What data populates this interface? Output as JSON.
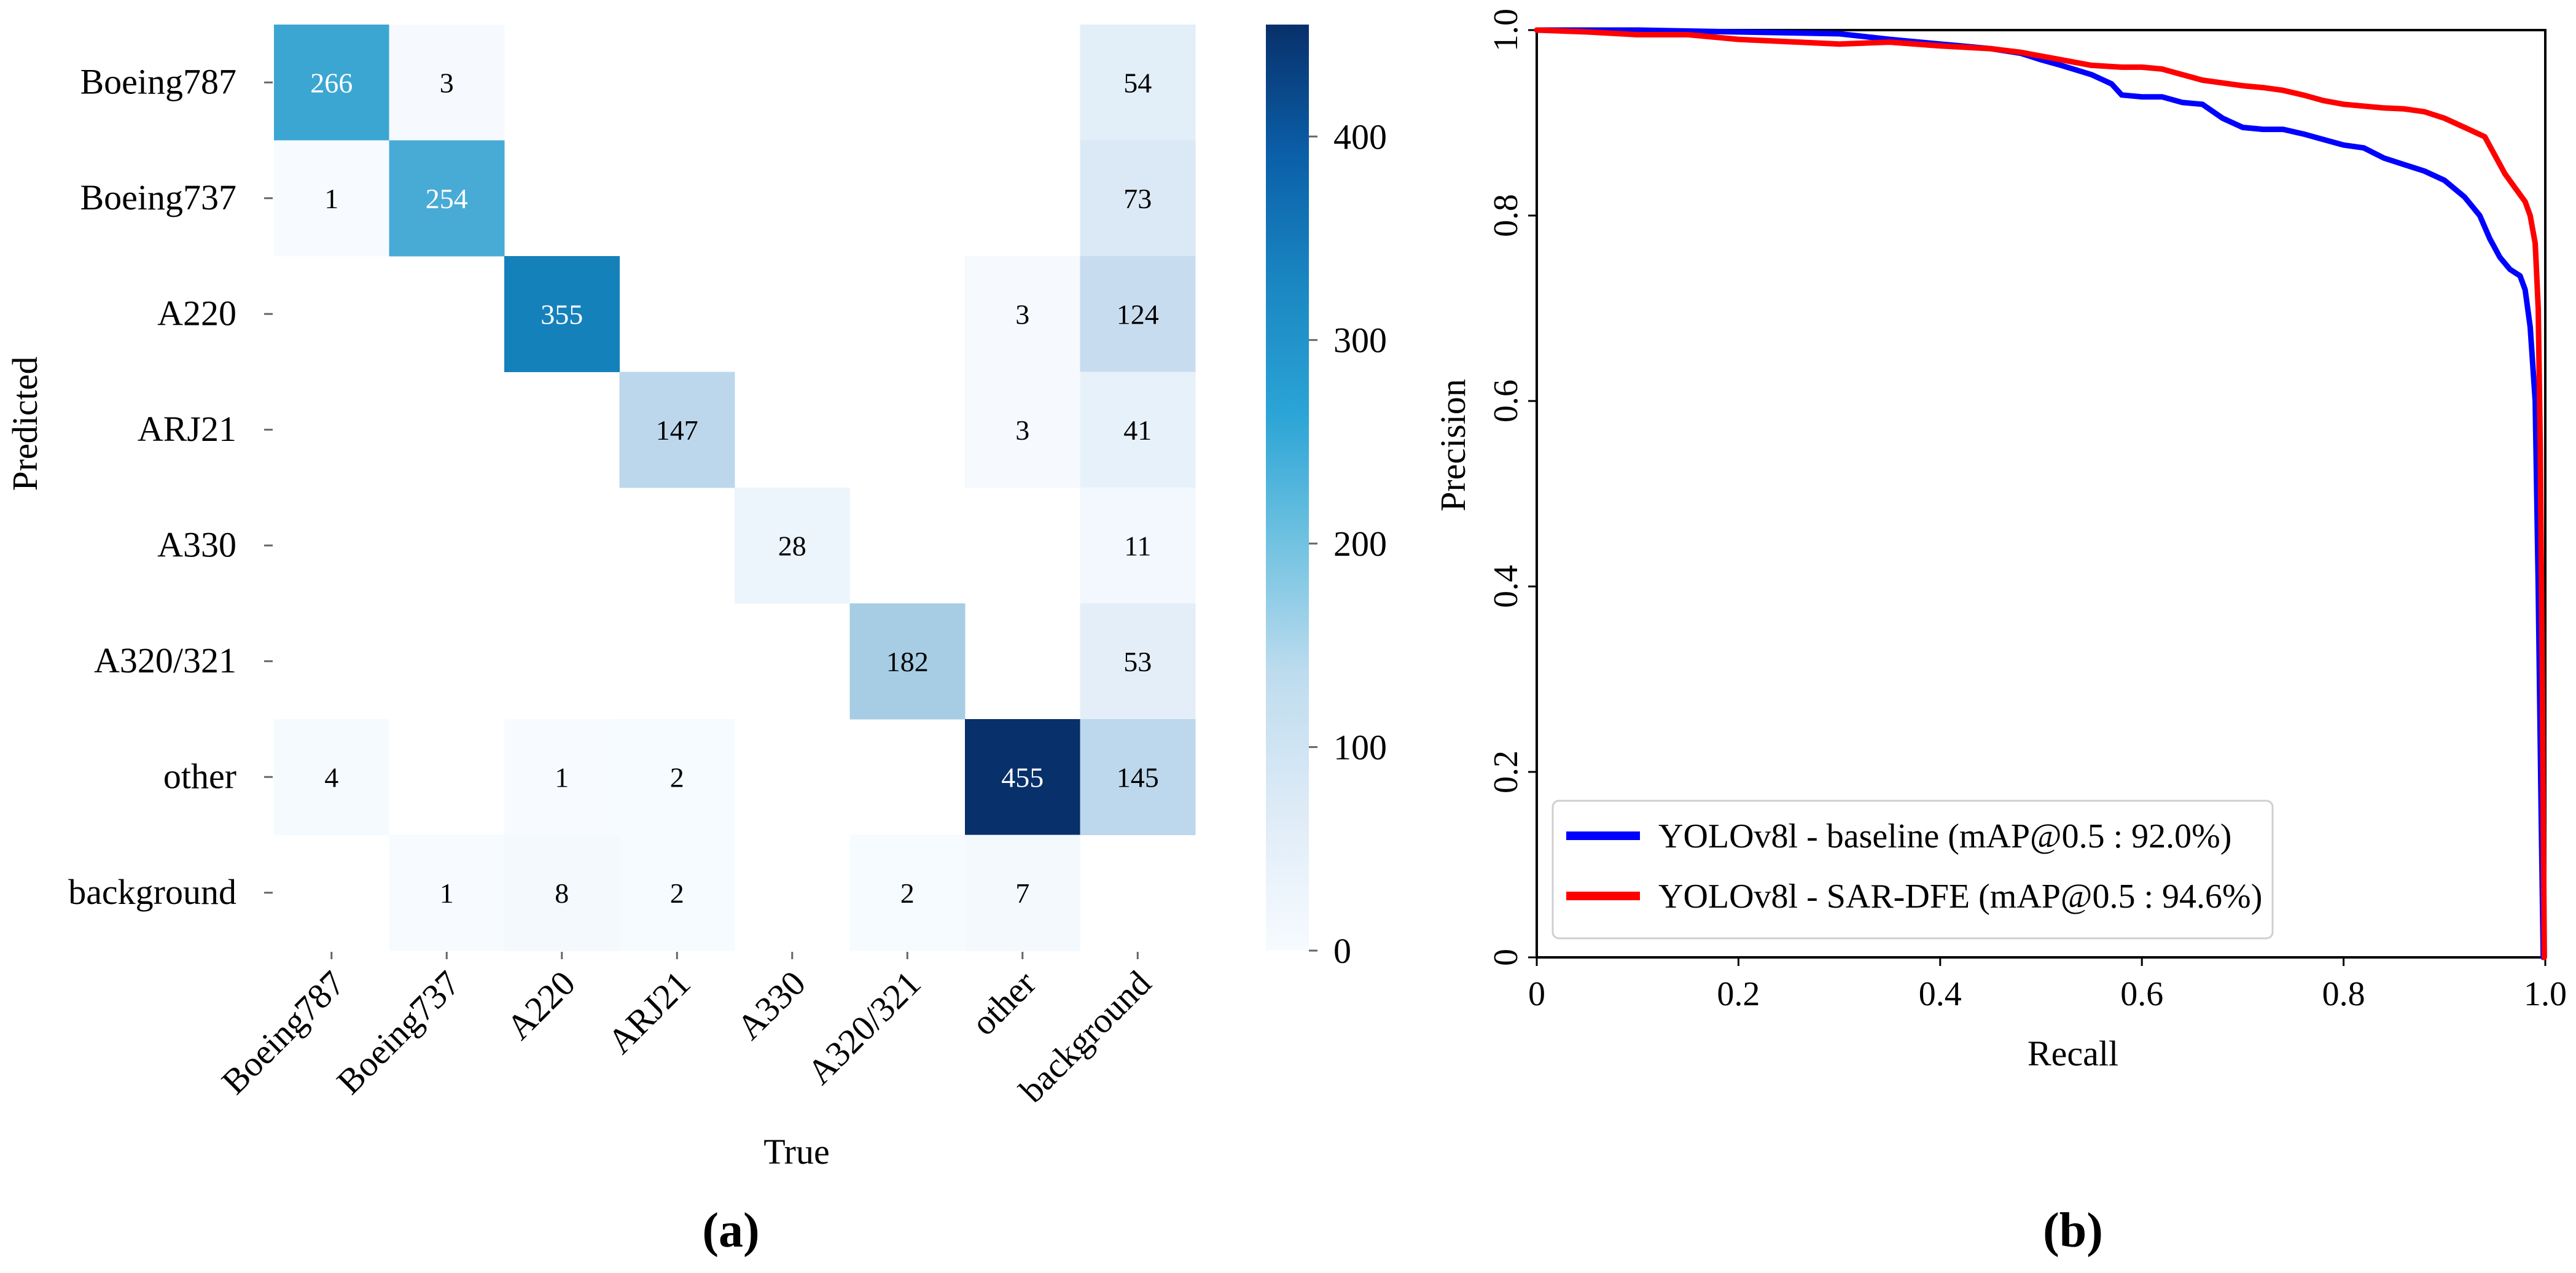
{
  "chart_data": [
    {
      "type": "heatmap",
      "panel_label": "(a)",
      "xlabel": "True",
      "ylabel": "Predicted",
      "row_labels": [
        "Boeing787",
        "Boeing737",
        "A220",
        "ARJ21",
        "A330",
        "A320/321",
        "other",
        "background"
      ],
      "col_labels": [
        "Boeing787",
        "Boeing737",
        "A220",
        "ARJ21",
        "A330",
        "A320/321",
        "other",
        "background"
      ],
      "cells": [
        {
          "row": 0,
          "col": 0,
          "value": 266
        },
        {
          "row": 0,
          "col": 1,
          "value": 3
        },
        {
          "row": 0,
          "col": 7,
          "value": 54
        },
        {
          "row": 1,
          "col": 0,
          "value": 1
        },
        {
          "row": 1,
          "col": 1,
          "value": 254
        },
        {
          "row": 1,
          "col": 7,
          "value": 73
        },
        {
          "row": 2,
          "col": 2,
          "value": 355
        },
        {
          "row": 2,
          "col": 6,
          "value": 3
        },
        {
          "row": 2,
          "col": 7,
          "value": 124
        },
        {
          "row": 3,
          "col": 3,
          "value": 147
        },
        {
          "row": 3,
          "col": 6,
          "value": 3
        },
        {
          "row": 3,
          "col": 7,
          "value": 41
        },
        {
          "row": 4,
          "col": 4,
          "value": 28
        },
        {
          "row": 4,
          "col": 7,
          "value": 11
        },
        {
          "row": 5,
          "col": 5,
          "value": 182
        },
        {
          "row": 5,
          "col": 7,
          "value": 53
        },
        {
          "row": 6,
          "col": 0,
          "value": 4
        },
        {
          "row": 6,
          "col": 2,
          "value": 1
        },
        {
          "row": 6,
          "col": 3,
          "value": 2
        },
        {
          "row": 6,
          "col": 6,
          "value": 455
        },
        {
          "row": 6,
          "col": 7,
          "value": 145
        },
        {
          "row": 7,
          "col": 1,
          "value": 1
        },
        {
          "row": 7,
          "col": 2,
          "value": 8
        },
        {
          "row": 7,
          "col": 3,
          "value": 2
        },
        {
          "row": 7,
          "col": 5,
          "value": 2
        },
        {
          "row": 7,
          "col": 6,
          "value": 7
        }
      ],
      "colorbar": {
        "vmin": 0,
        "vmax": 455,
        "ticks": [
          0,
          100,
          200,
          300,
          400
        ],
        "tick_labels": [
          "0",
          "100",
          "200",
          "300",
          "400"
        ],
        "colormap": "Blues",
        "colors": [
          "#f7fbff",
          "#deebf7",
          "#c6dbef",
          "#9ecae1",
          "#3fa8d4",
          "#1d91c0",
          "#0c6fb5",
          "#08306b"
        ]
      }
    },
    {
      "type": "line",
      "panel_label": "(b)",
      "xlabel": "Recall",
      "ylabel": "Precision",
      "xlim": [
        0,
        1
      ],
      "ylim": [
        0,
        1
      ],
      "x_ticks": [
        0,
        0.2,
        0.4,
        0.6,
        0.8,
        1.0
      ],
      "x_tick_labels": [
        "0",
        "0.2",
        "0.4",
        "0.6",
        "0.8",
        "1.0"
      ],
      "y_ticks": [
        0,
        0.2,
        0.4,
        0.6,
        0.8,
        1.0
      ],
      "y_tick_labels": [
        "0",
        "0.2",
        "0.4",
        "0.6",
        "0.8",
        "1.0"
      ],
      "legend_position": "bottom-left",
      "series": [
        {
          "name": "YOLOv8l - baseline (mAP@0.5 : 92.0%)",
          "color": "#0000ff",
          "points": [
            [
              0,
              1.0
            ],
            [
              0.05,
              1.0
            ],
            [
              0.1,
              1.0
            ],
            [
              0.2,
              0.998
            ],
            [
              0.3,
              0.996
            ],
            [
              0.35,
              0.99
            ],
            [
              0.4,
              0.985
            ],
            [
              0.45,
              0.98
            ],
            [
              0.48,
              0.975
            ],
            [
              0.5,
              0.968
            ],
            [
              0.52,
              0.962
            ],
            [
              0.55,
              0.952
            ],
            [
              0.57,
              0.942
            ],
            [
              0.58,
              0.93
            ],
            [
              0.6,
              0.928
            ],
            [
              0.62,
              0.928
            ],
            [
              0.64,
              0.922
            ],
            [
              0.66,
              0.92
            ],
            [
              0.68,
              0.905
            ],
            [
              0.7,
              0.895
            ],
            [
              0.72,
              0.893
            ],
            [
              0.74,
              0.893
            ],
            [
              0.76,
              0.888
            ],
            [
              0.78,
              0.882
            ],
            [
              0.8,
              0.876
            ],
            [
              0.82,
              0.873
            ],
            [
              0.84,
              0.862
            ],
            [
              0.86,
              0.855
            ],
            [
              0.88,
              0.848
            ],
            [
              0.9,
              0.838
            ],
            [
              0.92,
              0.82
            ],
            [
              0.935,
              0.8
            ],
            [
              0.945,
              0.775
            ],
            [
              0.955,
              0.755
            ],
            [
              0.965,
              0.742
            ],
            [
              0.975,
              0.735
            ],
            [
              0.98,
              0.72
            ],
            [
              0.985,
              0.68
            ],
            [
              0.99,
              0.6
            ],
            [
              0.993,
              0.4
            ],
            [
              0.996,
              0.15
            ],
            [
              0.998,
              0.0
            ]
          ]
        },
        {
          "name": "YOLOv8l - SAR-DFE (mAP@0.5 : 94.6%)",
          "color": "#ff0000",
          "points": [
            [
              0,
              1.0
            ],
            [
              0.05,
              0.998
            ],
            [
              0.1,
              0.995
            ],
            [
              0.15,
              0.995
            ],
            [
              0.2,
              0.99
            ],
            [
              0.3,
              0.985
            ],
            [
              0.35,
              0.987
            ],
            [
              0.4,
              0.983
            ],
            [
              0.45,
              0.98
            ],
            [
              0.48,
              0.976
            ],
            [
              0.5,
              0.972
            ],
            [
              0.52,
              0.968
            ],
            [
              0.55,
              0.962
            ],
            [
              0.58,
              0.96
            ],
            [
              0.6,
              0.96
            ],
            [
              0.62,
              0.958
            ],
            [
              0.64,
              0.952
            ],
            [
              0.66,
              0.946
            ],
            [
              0.68,
              0.943
            ],
            [
              0.7,
              0.94
            ],
            [
              0.72,
              0.938
            ],
            [
              0.74,
              0.935
            ],
            [
              0.76,
              0.93
            ],
            [
              0.78,
              0.924
            ],
            [
              0.8,
              0.92
            ],
            [
              0.82,
              0.918
            ],
            [
              0.84,
              0.916
            ],
            [
              0.86,
              0.915
            ],
            [
              0.88,
              0.912
            ],
            [
              0.9,
              0.905
            ],
            [
              0.92,
              0.895
            ],
            [
              0.94,
              0.885
            ],
            [
              0.95,
              0.865
            ],
            [
              0.96,
              0.845
            ],
            [
              0.97,
              0.83
            ],
            [
              0.98,
              0.815
            ],
            [
              0.985,
              0.8
            ],
            [
              0.99,
              0.77
            ],
            [
              0.993,
              0.7
            ],
            [
              0.995,
              0.55
            ],
            [
              0.997,
              0.3
            ],
            [
              0.999,
              0.0
            ]
          ]
        }
      ]
    }
  ]
}
